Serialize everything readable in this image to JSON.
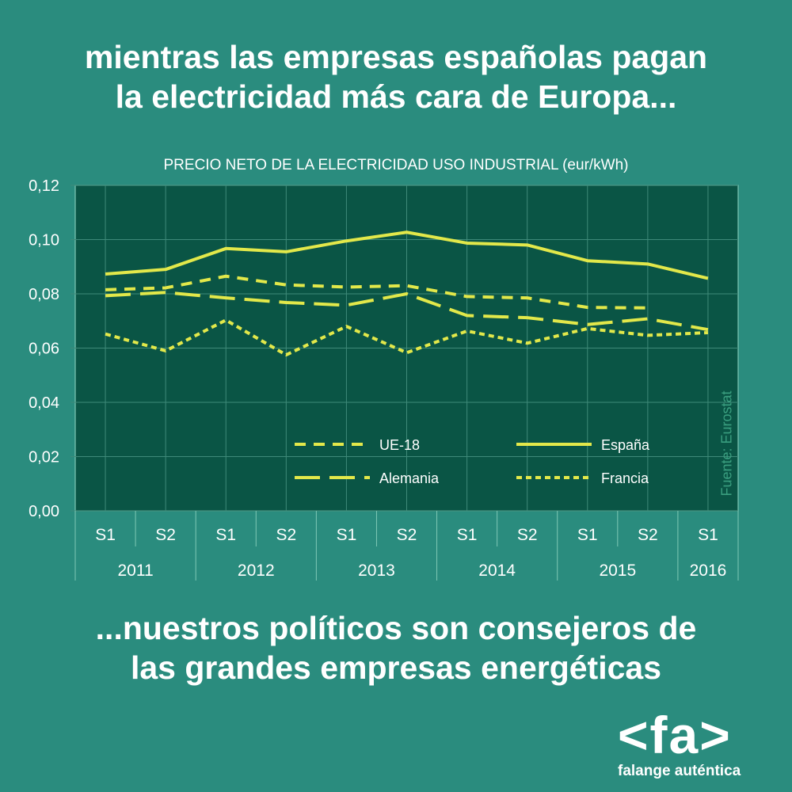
{
  "headline_top": "mientras las empresas españolas pagan\nla electricidad más cara de Europa...",
  "headline_bottom": "...nuestros políticos son consejeros de\nlas grandes empresas energéticas",
  "source_note": "Fuente: Eurostat",
  "logo": {
    "mark": "<fa>",
    "text": "falange auténtica"
  },
  "colors": {
    "background": "#2a8c7e",
    "plot_area": "#0a5545",
    "series": "#e2e84a",
    "text": "#ffffff"
  },
  "chart_data": {
    "type": "line",
    "title": "PRECIO NETO DE LA ELECTRICIDAD USO INDUSTRIAL (eur/kWh)",
    "categories": [
      "S1",
      "S2",
      "S1",
      "S2",
      "S1",
      "S2",
      "S1",
      "S2",
      "S1",
      "S2",
      "S1"
    ],
    "years": [
      {
        "label": "2011",
        "span": 2
      },
      {
        "label": "2012",
        "span": 2
      },
      {
        "label": "2013",
        "span": 2
      },
      {
        "label": "2014",
        "span": 2
      },
      {
        "label": "2015",
        "span": 2
      },
      {
        "label": "2016",
        "span": 1
      }
    ],
    "ylim": [
      0,
      0.12
    ],
    "yticks": [
      "0,00",
      "0,02",
      "0,04",
      "0,06",
      "0,08",
      "0,10",
      "0,12"
    ],
    "grid": true,
    "legend_position": "bottom-center inside plot",
    "series": [
      {
        "name": "UE-18",
        "style": "dashed",
        "values": [
          0.0815,
          0.0822,
          0.0865,
          0.0833,
          0.0825,
          0.083,
          0.079,
          0.0785,
          0.075,
          0.0748,
          null
        ]
      },
      {
        "name": "España",
        "style": "solid",
        "values": [
          0.0873,
          0.089,
          0.0967,
          0.0955,
          0.0995,
          0.1027,
          0.0987,
          0.098,
          0.0922,
          0.091,
          0.0857
        ]
      },
      {
        "name": "Alemania",
        "style": "long-dashed",
        "values": [
          0.0793,
          0.0805,
          0.0785,
          0.0768,
          0.0758,
          0.08,
          0.072,
          0.0712,
          0.0687,
          0.0708,
          0.0668
        ]
      },
      {
        "name": "Francia",
        "style": "dotted",
        "values": [
          0.0652,
          0.059,
          0.0703,
          0.0575,
          0.068,
          0.0583,
          0.0663,
          0.0618,
          0.0672,
          0.0647,
          0.0657
        ]
      }
    ]
  }
}
